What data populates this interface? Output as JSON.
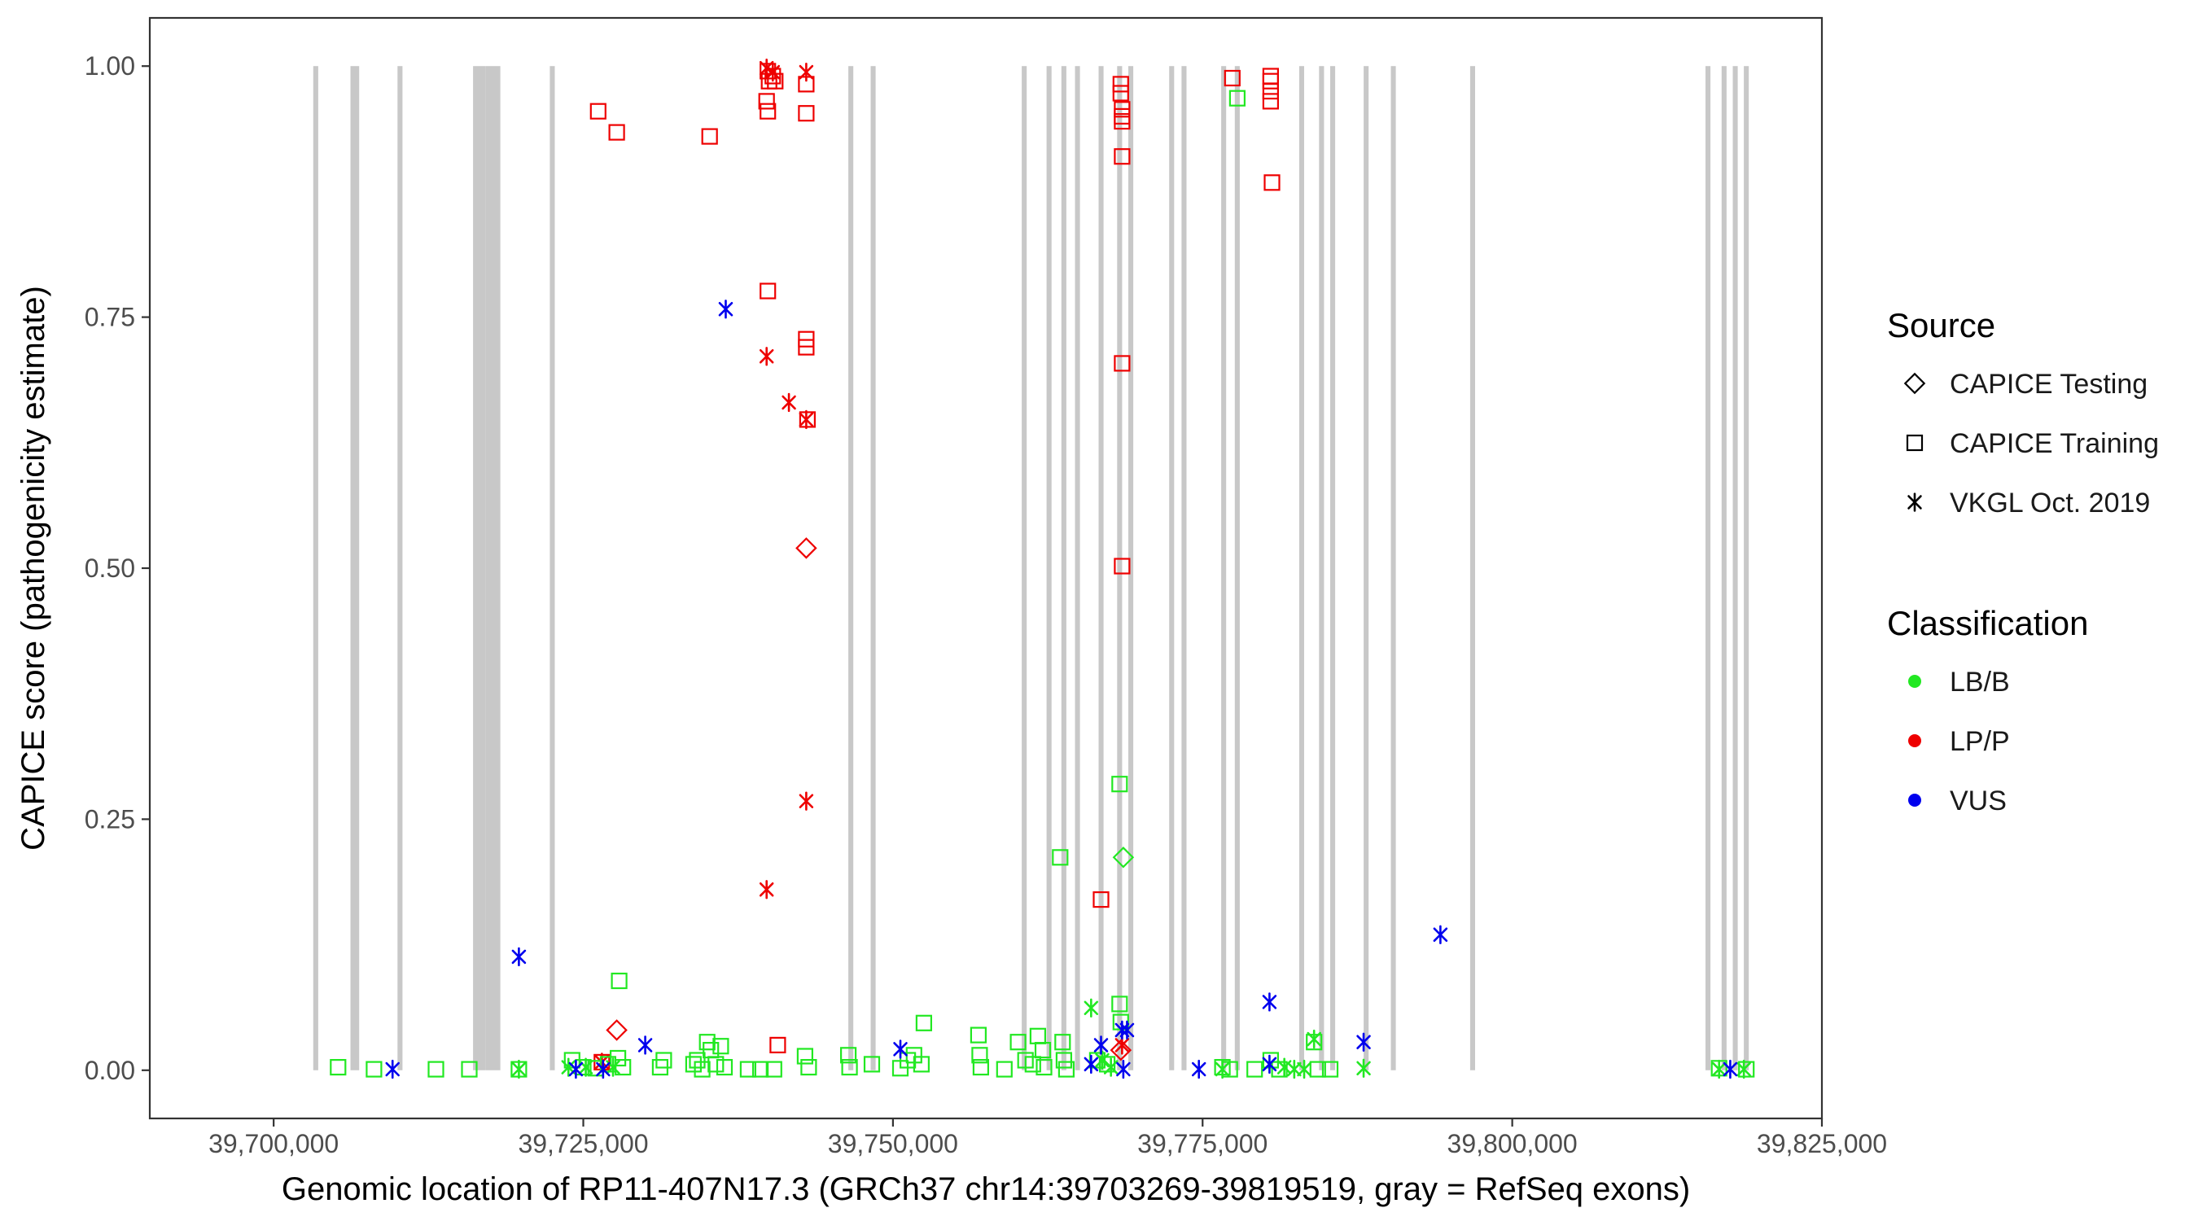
{
  "chart_data": {
    "type": "scatter",
    "xlabel": "Genomic location of RP11-407N17.3 (GRCh37 chr14:39703269-39819519, gray = RefSeq exons)",
    "ylabel": "CAPICE score (pathogenicity estimate)",
    "xlim": [
      39690000,
      39825000
    ],
    "ylim": [
      -0.048,
      1.048
    ],
    "x_ticks": [
      39700000,
      39725000,
      39750000,
      39775000,
      39800000,
      39825000
    ],
    "x_tick_labels": [
      "39,700,000",
      "39,725,000",
      "39,750,000",
      "39,775,000",
      "39,800,000",
      "39,825,000"
    ],
    "y_ticks": [
      0,
      0.25,
      0.5,
      0.75,
      1.0
    ],
    "y_tick_labels": [
      "0.00",
      "0.25",
      "0.50",
      "0.75",
      "1.00"
    ],
    "grid": false,
    "exon_color": "#c8c8c8",
    "exons": [
      [
        39703200,
        39703600
      ],
      [
        39706200,
        39706900
      ],
      [
        39710000,
        39710400
      ],
      [
        39716100,
        39717100
      ],
      [
        39717100,
        39718300
      ],
      [
        39722300,
        39722700
      ],
      [
        39746400,
        39746800
      ],
      [
        39748200,
        39748600
      ],
      [
        39760400,
        39760800
      ],
      [
        39762400,
        39762800
      ],
      [
        39763600,
        39764000
      ],
      [
        39764700,
        39765100
      ],
      [
        39766600,
        39767000
      ],
      [
        39768100,
        39768500
      ],
      [
        39769000,
        39769400
      ],
      [
        39772300,
        39772700
      ],
      [
        39773300,
        39773700
      ],
      [
        39776500,
        39776900
      ],
      [
        39777600,
        39778000
      ],
      [
        39782800,
        39783200
      ],
      [
        39784400,
        39784800
      ],
      [
        39785300,
        39785700
      ],
      [
        39788000,
        39788400
      ],
      [
        39790200,
        39790600
      ],
      [
        39796600,
        39797000
      ],
      [
        39815600,
        39816000
      ],
      [
        39816900,
        39817300
      ],
      [
        39817800,
        39818200
      ],
      [
        39818700,
        39819100
      ]
    ],
    "legend_placement": "right",
    "legend": {
      "source_title": "Source",
      "source": [
        {
          "label": "CAPICE Testing",
          "shape": "diamond"
        },
        {
          "label": "CAPICE Training",
          "shape": "square"
        },
        {
          "label": "VKGL Oct. 2019",
          "shape": "asterisk"
        }
      ],
      "classification_title": "Classification",
      "classification": [
        {
          "label": "LB/B",
          "color": "#22e822"
        },
        {
          "label": "LP/P",
          "color": "#ee0000"
        },
        {
          "label": "VUS",
          "color": "#0000ee"
        }
      ]
    },
    "series": [
      {
        "source": "CAPICE Training",
        "classification": "LP/P",
        "shape": "square",
        "color": "#ee0000",
        "points": [
          [
            39726200,
            0.955
          ],
          [
            39727700,
            0.934
          ],
          [
            39735200,
            0.93
          ],
          [
            39739900,
            0.995
          ],
          [
            39740000,
            0.985
          ],
          [
            39740300,
            0.99
          ],
          [
            39740500,
            0.985
          ],
          [
            39739800,
            0.965
          ],
          [
            39739900,
            0.955
          ],
          [
            39739900,
            0.776
          ],
          [
            39740700,
            0.025
          ],
          [
            39743000,
            0.982
          ],
          [
            39743000,
            0.953
          ],
          [
            39743000,
            0.728
          ],
          [
            39743000,
            0.72
          ],
          [
            39743100,
            0.648
          ],
          [
            39766800,
            0.17
          ],
          [
            39768400,
            0.982
          ],
          [
            39768400,
            0.973
          ],
          [
            39768500,
            0.957
          ],
          [
            39768500,
            0.95
          ],
          [
            39768500,
            0.945
          ],
          [
            39768500,
            0.91
          ],
          [
            39768500,
            0.704
          ],
          [
            39768500,
            0.502
          ],
          [
            39777400,
            0.988
          ],
          [
            39780500,
            0.99
          ],
          [
            39780500,
            0.985
          ],
          [
            39780500,
            0.975
          ],
          [
            39780500,
            0.965
          ],
          [
            39780600,
            0.884
          ],
          [
            39726500,
            0.008
          ]
        ]
      },
      {
        "source": "VKGL Oct. 2019",
        "classification": "LP/P",
        "shape": "asterisk",
        "color": "#ee0000",
        "points": [
          [
            39739800,
            0.998
          ],
          [
            39740300,
            0.994
          ],
          [
            39743000,
            0.994
          ],
          [
            39739800,
            0.711
          ],
          [
            39741600,
            0.665
          ],
          [
            39743000,
            0.648
          ],
          [
            39743000,
            0.268
          ],
          [
            39739800,
            0.18
          ],
          [
            39726500,
            0.008
          ],
          [
            39768500,
            0.025
          ]
        ]
      },
      {
        "source": "CAPICE Testing",
        "classification": "LP/P",
        "shape": "diamond",
        "color": "#ee0000",
        "points": [
          [
            39743000,
            0.52
          ],
          [
            39727700,
            0.04
          ],
          [
            39768400,
            0.02
          ]
        ]
      },
      {
        "source": "CAPICE Testing",
        "classification": "LB/B",
        "shape": "diamond",
        "color": "#22e822",
        "points": [
          [
            39768600,
            0.212
          ]
        ]
      },
      {
        "source": "CAPICE Training",
        "classification": "LB/B",
        "shape": "square",
        "color": "#22e822",
        "points": [
          [
            39705200,
            0.003
          ],
          [
            39708100,
            0.001
          ],
          [
            39713100,
            0.001
          ],
          [
            39715800,
            0.001
          ],
          [
            39719800,
            0.001
          ],
          [
            39724100,
            0.01
          ],
          [
            39725000,
            0.003
          ],
          [
            39726000,
            0.002
          ],
          [
            39727000,
            0.006
          ],
          [
            39727800,
            0.012
          ],
          [
            39728200,
            0.003
          ],
          [
            39727900,
            0.089
          ],
          [
            39731200,
            0.003
          ],
          [
            39731500,
            0.01
          ],
          [
            39733900,
            0.006
          ],
          [
            39734200,
            0.01
          ],
          [
            39734600,
            0.001
          ],
          [
            39735000,
            0.028
          ],
          [
            39735300,
            0.02
          ],
          [
            39735700,
            0.006
          ],
          [
            39736100,
            0.024
          ],
          [
            39736400,
            0.003
          ],
          [
            39738300,
            0.001
          ],
          [
            39739300,
            0.001
          ],
          [
            39740400,
            0.001
          ],
          [
            39742900,
            0.014
          ],
          [
            39743200,
            0.003
          ],
          [
            39746400,
            0.015
          ],
          [
            39746500,
            0.003
          ],
          [
            39748300,
            0.006
          ],
          [
            39750600,
            0.002
          ],
          [
            39751200,
            0.01
          ],
          [
            39751700,
            0.015
          ],
          [
            39752300,
            0.006
          ],
          [
            39752500,
            0.047
          ],
          [
            39756900,
            0.035
          ],
          [
            39757000,
            0.015
          ],
          [
            39757100,
            0.003
          ],
          [
            39759000,
            0.001
          ],
          [
            39760100,
            0.028
          ],
          [
            39760700,
            0.01
          ],
          [
            39761300,
            0.006
          ],
          [
            39761700,
            0.034
          ],
          [
            39762100,
            0.02
          ],
          [
            39762200,
            0.003
          ],
          [
            39763500,
            0.212
          ],
          [
            39763700,
            0.028
          ],
          [
            39763800,
            0.01
          ],
          [
            39764000,
            0.001
          ],
          [
            39766500,
            0.01
          ],
          [
            39767300,
            0.006
          ],
          [
            39768300,
            0.285
          ],
          [
            39768300,
            0.066
          ],
          [
            39768400,
            0.048
          ],
          [
            39777800,
            0.968
          ],
          [
            39776600,
            0.003
          ],
          [
            39777200,
            0.001
          ],
          [
            39779200,
            0.001
          ],
          [
            39780500,
            0.01
          ],
          [
            39781200,
            0.001
          ],
          [
            39784000,
            0.028
          ],
          [
            39784300,
            0.001
          ],
          [
            39785300,
            0.001
          ],
          [
            39816700,
            0.002
          ],
          [
            39818900,
            0.001
          ]
        ]
      },
      {
        "source": "VKGL Oct. 2019",
        "classification": "LB/B",
        "shape": "asterisk",
        "color": "#22e822",
        "points": [
          [
            39719800,
            0.001
          ],
          [
            39723800,
            0.003
          ],
          [
            39725200,
            0.003
          ],
          [
            39727400,
            0.003
          ],
          [
            39766000,
            0.062
          ],
          [
            39766900,
            0.01
          ],
          [
            39767600,
            0.003
          ],
          [
            39776600,
            0.001
          ],
          [
            39781600,
            0.003
          ],
          [
            39782400,
            0.001
          ],
          [
            39783200,
            0.001
          ],
          [
            39784000,
            0.031
          ],
          [
            39788000,
            0.002
          ],
          [
            39816700,
            0.001
          ],
          [
            39818700,
            0.001
          ]
        ]
      },
      {
        "source": "VKGL Oct. 2019",
        "classification": "VUS",
        "shape": "asterisk",
        "color": "#0000ee",
        "points": [
          [
            39709600,
            0.001
          ],
          [
            39719800,
            0.113
          ],
          [
            39724400,
            0.001
          ],
          [
            39726600,
            0.001
          ],
          [
            39730000,
            0.025
          ],
          [
            39736500,
            0.758
          ],
          [
            39750600,
            0.021
          ],
          [
            39766000,
            0.006
          ],
          [
            39766800,
            0.025
          ],
          [
            39768500,
            0.04
          ],
          [
            39768900,
            0.04
          ],
          [
            39768600,
            0.001
          ],
          [
            39774700,
            0.001
          ],
          [
            39780400,
            0.068
          ],
          [
            39780400,
            0.006
          ],
          [
            39788000,
            0.028
          ],
          [
            39794200,
            0.135
          ],
          [
            39817600,
            0.001
          ]
        ]
      }
    ]
  }
}
